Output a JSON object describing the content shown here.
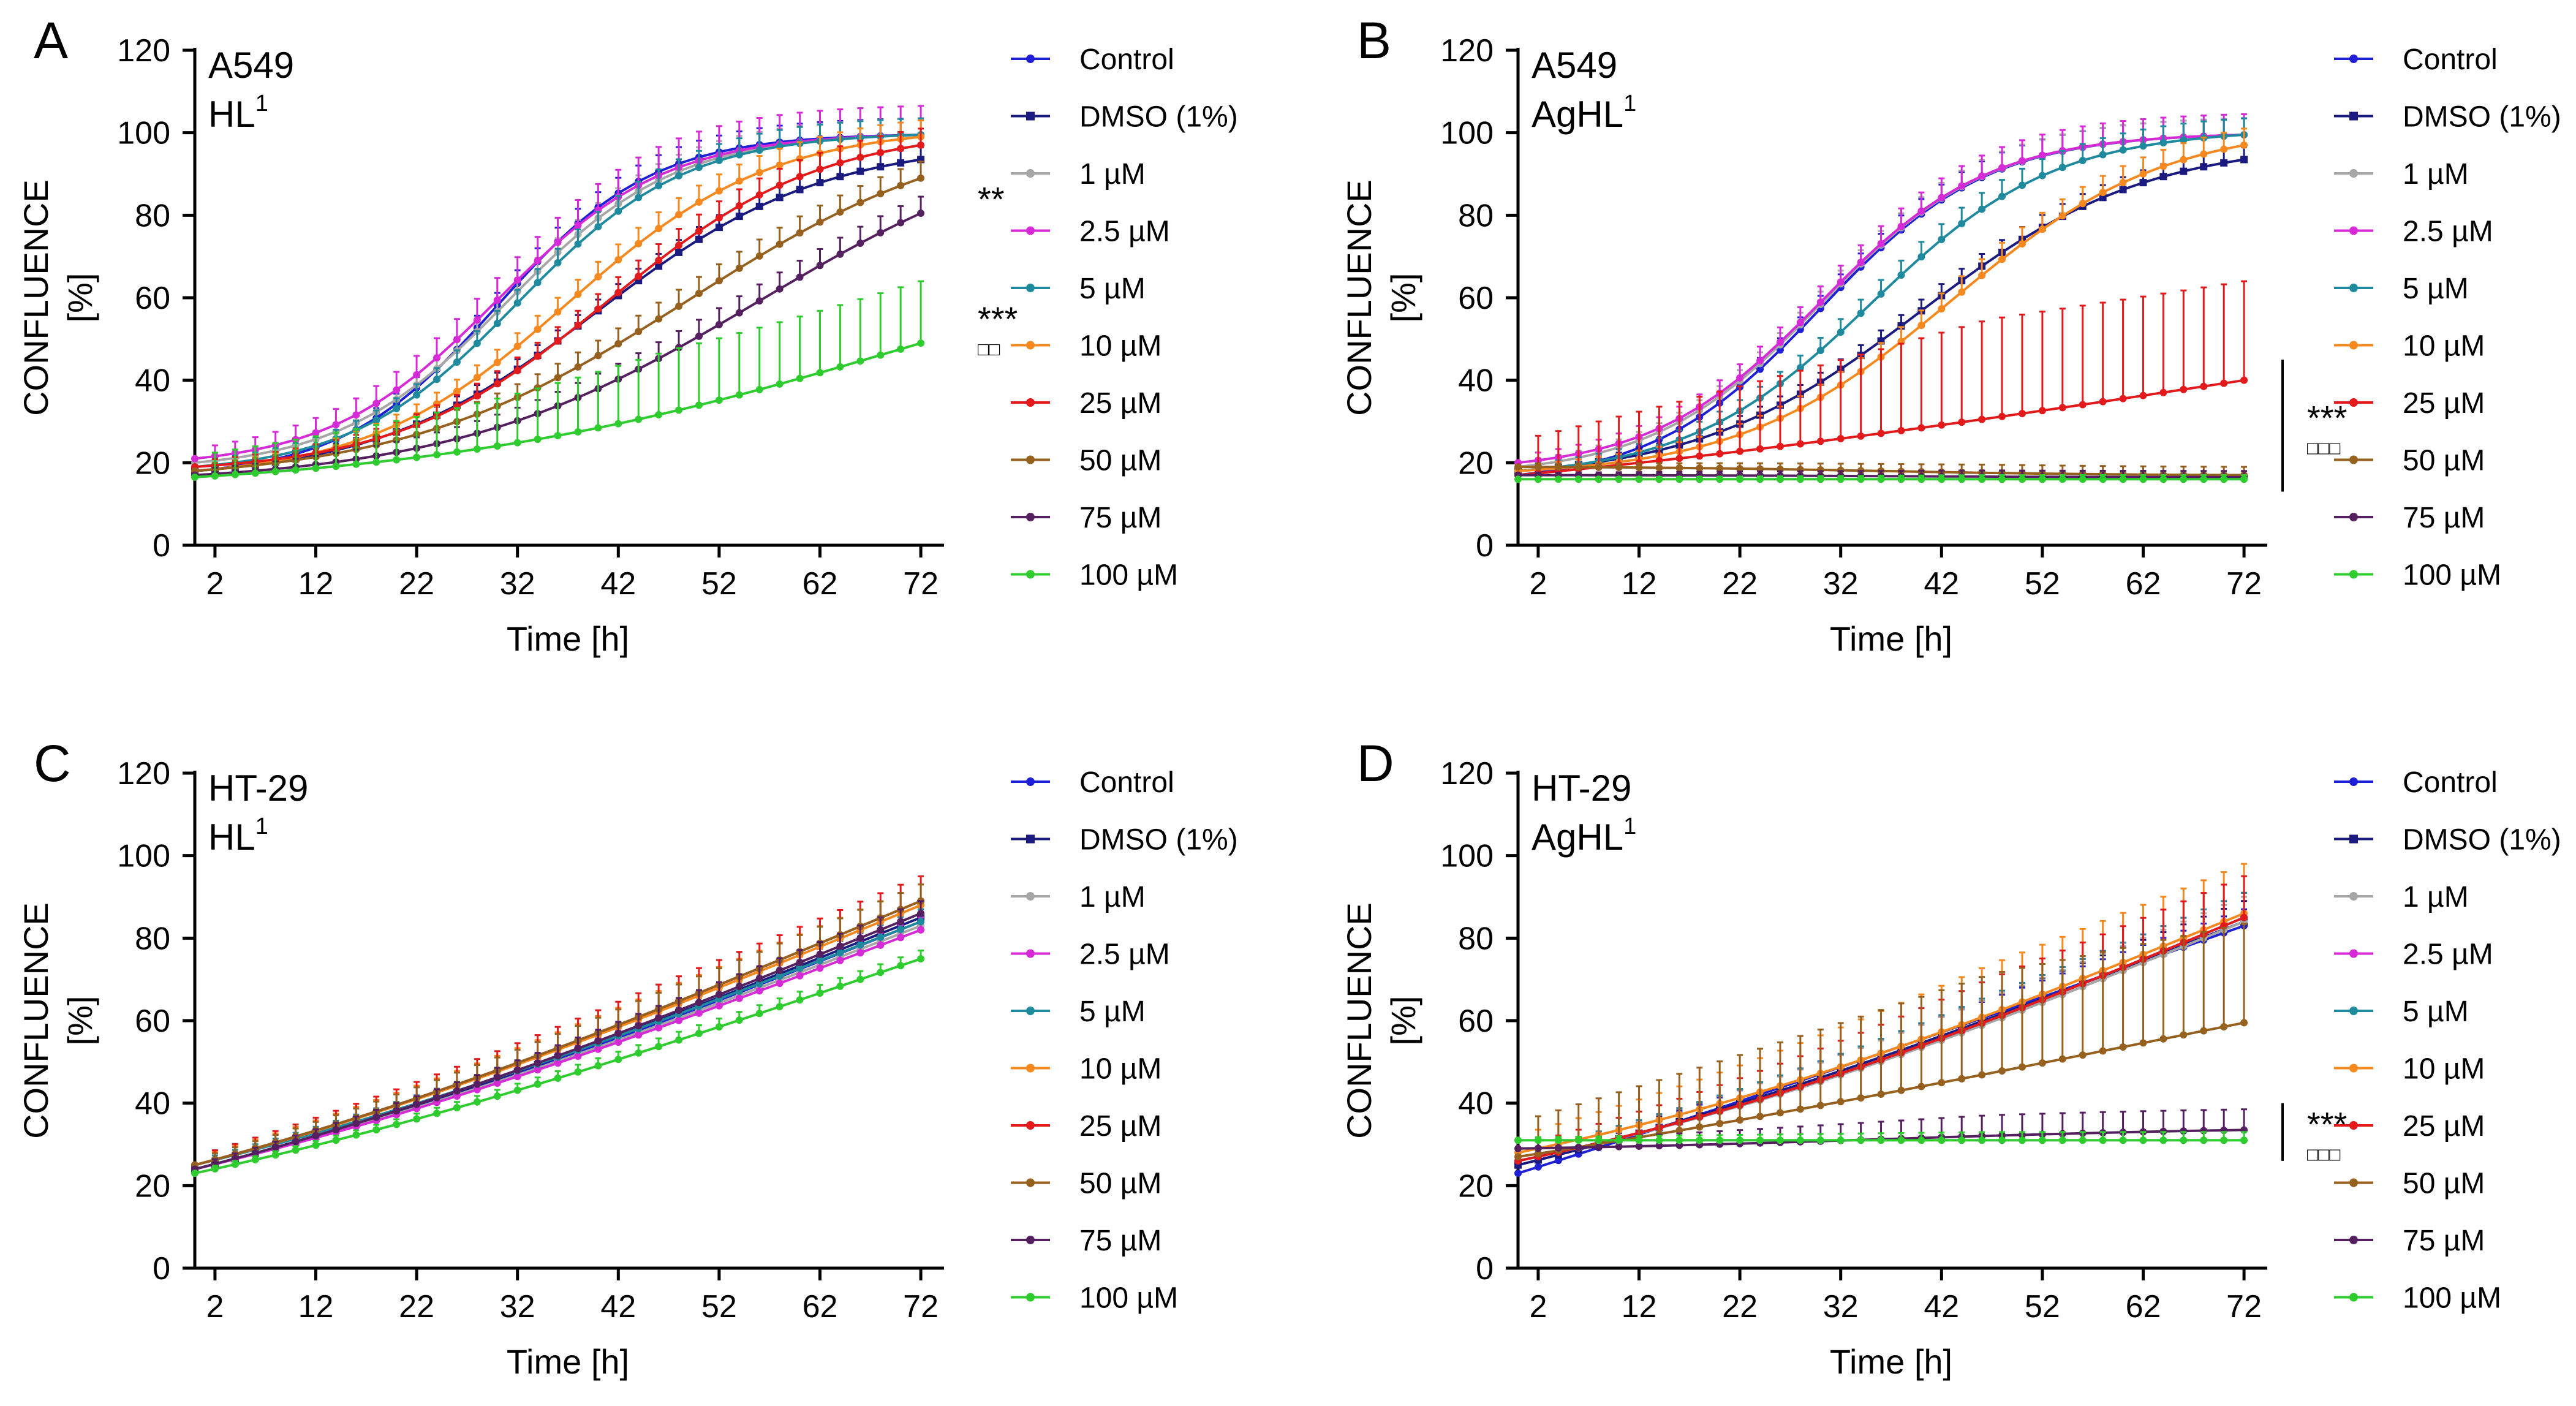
{
  "figure": {
    "series_names": [
      "Control",
      "DMSO (1%)",
      "1 µM",
      "2.5 µM",
      "5 µM",
      "10 µM",
      "25 µM",
      "50 µM",
      "75 µM",
      "100 µM"
    ],
    "series_colors": [
      "#1f1fd6",
      "#1a1a80",
      "#a6a6a6",
      "#d62ad6",
      "#1f8a9e",
      "#f5891f",
      "#e31a1c",
      "#96601f",
      "#55205f",
      "#2ecc2e"
    ],
    "series_markers": [
      "circle",
      "square",
      "circle",
      "circle",
      "circle",
      "circle",
      "circle",
      "circle",
      "circle",
      "circle"
    ]
  },
  "chart_data": [
    {
      "panel": "A",
      "type": "line",
      "title_line1": "A549",
      "title_line2_base": "HL",
      "title_line2_sup": "1",
      "xlabel": "Time [h]",
      "ylabel_line1": "CONFLUENCE",
      "ylabel_line2": "[%]",
      "xlim": [
        0,
        74
      ],
      "ylim": [
        0,
        120
      ],
      "xticks": [
        2,
        12,
        22,
        32,
        42,
        52,
        62,
        72
      ],
      "yticks": [
        0,
        20,
        40,
        60,
        80,
        100,
        120
      ],
      "series": [
        {
          "name": "Control",
          "start": 18,
          "end": 99.5,
          "mid": 30,
          "k": 0.13,
          "err": 4
        },
        {
          "name": "DMSO (1%)",
          "start": 18,
          "end": 93.5,
          "mid": 40,
          "k": 0.09,
          "err": 3
        },
        {
          "name": "1 µM",
          "start": 20,
          "end": 99.5,
          "mid": 31,
          "k": 0.12,
          "err": 4
        },
        {
          "name": "2.5 µM",
          "start": 21,
          "end": 99.5,
          "mid": 30,
          "k": 0.12,
          "err": 7
        },
        {
          "name": "5 µM",
          "start": 19,
          "end": 99.5,
          "mid": 32,
          "k": 0.12,
          "err": 4
        },
        {
          "name": "10 µM",
          "start": 18,
          "end": 99,
          "mid": 37,
          "k": 0.1,
          "err": 4
        },
        {
          "name": "25 µM",
          "start": 19,
          "end": 97,
          "mid": 41,
          "k": 0.095,
          "err": 4
        },
        {
          "name": "50 µM",
          "start": 18,
          "end": 89,
          "mid": 49,
          "k": 0.07,
          "err": 4
        },
        {
          "name": "75 µM",
          "start": 17,
          "end": 80.5,
          "mid": 56,
          "k": 0.065,
          "err": 4
        },
        {
          "name": "100 µM",
          "start": 16.5,
          "end": 49,
          "mid": 72,
          "k": 0.04,
          "err": 15
        }
      ],
      "annotations": [
        {
          "stars": "**",
          "boxes": "",
          "y": 81,
          "bracket": false
        },
        {
          "stars": "***",
          "boxes": "□□",
          "y": 52,
          "bracket": false
        }
      ]
    },
    {
      "panel": "B",
      "type": "line",
      "title_line1": "A549",
      "title_line2_base": "AgHL",
      "title_line2_sup": "1",
      "xlabel": "Time [h]",
      "ylabel_line1": "CONFLUENCE",
      "ylabel_line2": "[%]",
      "xlim": [
        0,
        74
      ],
      "ylim": [
        0,
        120
      ],
      "xticks": [
        2,
        12,
        22,
        32,
        42,
        52,
        62,
        72
      ],
      "yticks": [
        0,
        20,
        40,
        60,
        80,
        100,
        120
      ],
      "series": [
        {
          "name": "Control",
          "start": 17,
          "end": 99.5,
          "mid": 30,
          "k": 0.12,
          "err": 4
        },
        {
          "name": "DMSO (1%)",
          "start": 18,
          "end": 93.5,
          "mid": 40,
          "k": 0.09,
          "err": 3
        },
        {
          "name": "1 µM",
          "start": 19,
          "end": 99.5,
          "mid": 30,
          "k": 0.12,
          "err": 4
        },
        {
          "name": "2.5 µM",
          "start": 20,
          "end": 99.5,
          "mid": 30,
          "k": 0.12,
          "err": 5
        },
        {
          "name": "5 µM",
          "start": 18,
          "end": 99.5,
          "mid": 35,
          "k": 0.11,
          "err": 4
        },
        {
          "name": "10 µM",
          "start": 18,
          "end": 97,
          "mid": 43,
          "k": 0.095,
          "err": 4
        },
        {
          "name": "25 µM",
          "start": 17,
          "end": 40,
          "mid": 72,
          "k": 0.02,
          "err": 24
        },
        {
          "name": "50 µM",
          "start": 19,
          "end": 17,
          "mid": 36,
          "k": 0.08,
          "err": 2
        },
        {
          "name": "75 µM",
          "start": 17,
          "end": 16.5,
          "mid": 36,
          "k": 0.08,
          "err": 1.5
        },
        {
          "name": "100 µM",
          "start": 16,
          "end": 16,
          "mid": 36,
          "k": 0.08,
          "err": 1
        }
      ],
      "annotations": [
        {
          "stars": "***",
          "boxes": "□□□",
          "y": 28,
          "bracket": true,
          "bracket_from": 13,
          "bracket_to": 45
        }
      ]
    },
    {
      "panel": "C",
      "type": "line",
      "title_line1": "HT-29",
      "title_line2_base": "HL",
      "title_line2_sup": "1",
      "xlabel": "Time [h]",
      "ylabel_line1": "CONFLUENCE",
      "ylabel_line2": "[%]",
      "xlim": [
        0,
        74
      ],
      "ylim": [
        0,
        120
      ],
      "xticks": [
        2,
        12,
        22,
        32,
        42,
        52,
        62,
        72
      ],
      "yticks": [
        0,
        20,
        40,
        60,
        80,
        100,
        120
      ],
      "series": [
        {
          "name": "Control",
          "start": 24,
          "end": 84,
          "mid": 70,
          "k": 0.02,
          "err": 3
        },
        {
          "name": "DMSO (1%)",
          "start": 24,
          "end": 85,
          "mid": 70,
          "k": 0.02,
          "err": 3
        },
        {
          "name": "1 µM",
          "start": 24,
          "end": 83,
          "mid": 70,
          "k": 0.02,
          "err": 3
        },
        {
          "name": "2.5 µM",
          "start": 24,
          "end": 82,
          "mid": 70,
          "k": 0.02,
          "err": 3
        },
        {
          "name": "5 µM",
          "start": 25,
          "end": 84,
          "mid": 70,
          "k": 0.02,
          "err": 3
        },
        {
          "name": "10 µM",
          "start": 25,
          "end": 88,
          "mid": 70,
          "k": 0.02,
          "err": 5
        },
        {
          "name": "25 µM",
          "start": 25,
          "end": 89,
          "mid": 70,
          "k": 0.02,
          "err": 6
        },
        {
          "name": "50 µM",
          "start": 25,
          "end": 89,
          "mid": 70,
          "k": 0.02,
          "err": 4
        },
        {
          "name": "75 µM",
          "start": 24,
          "end": 86,
          "mid": 70,
          "k": 0.02,
          "err": 3
        },
        {
          "name": "100 µM",
          "start": 23,
          "end": 75,
          "mid": 70,
          "k": 0.02,
          "err": 2
        }
      ],
      "annotations": []
    },
    {
      "panel": "D",
      "type": "line",
      "title_line1": "HT-29",
      "title_line2_base": "AgHL",
      "title_line2_sup": "1",
      "xlabel": "Time [h]",
      "ylabel_line1": "CONFLUENCE",
      "ylabel_line2": "[%]",
      "xlim": [
        0,
        74
      ],
      "ylim": [
        0,
        120
      ],
      "xticks": [
        2,
        12,
        22,
        32,
        42,
        52,
        62,
        72
      ],
      "yticks": [
        0,
        20,
        40,
        60,
        80,
        100,
        120
      ],
      "series": [
        {
          "name": "Control",
          "start": 23,
          "end": 83,
          "mid": 70,
          "k": 0.01,
          "err": 4
        },
        {
          "name": "DMSO (1%)",
          "start": 25,
          "end": 84,
          "mid": 70,
          "k": 0.02,
          "err": 5
        },
        {
          "name": "1 µM",
          "start": 26,
          "end": 84,
          "mid": 70,
          "k": 0.025,
          "err": 6
        },
        {
          "name": "2.5 µM",
          "start": 26,
          "end": 85,
          "mid": 70,
          "k": 0.025,
          "err": 6
        },
        {
          "name": "5 µM",
          "start": 26,
          "end": 85,
          "mid": 70,
          "k": 0.025,
          "err": 6
        },
        {
          "name": "10 µM",
          "start": 28,
          "end": 86,
          "mid": 70,
          "k": 0.025,
          "err": 12
        },
        {
          "name": "25 µM",
          "start": 26,
          "end": 85,
          "mid": 70,
          "k": 0.025,
          "err": 10
        },
        {
          "name": "50 µM",
          "start": 27,
          "end": 59.5,
          "mid": 70,
          "k": 0.015,
          "err": 24
        },
        {
          "name": "75 µM",
          "start": 29,
          "end": 33.5,
          "mid": 36,
          "k": 0.05,
          "err": 5
        },
        {
          "name": "100 µM",
          "start": 31,
          "end": 31,
          "mid": 36,
          "k": 0.05,
          "err": 2
        }
      ],
      "annotations": [
        {
          "stars": "***",
          "boxes": "□□□",
          "y": 32,
          "bracket": true,
          "bracket_from": 26,
          "bracket_to": 40
        }
      ]
    }
  ]
}
